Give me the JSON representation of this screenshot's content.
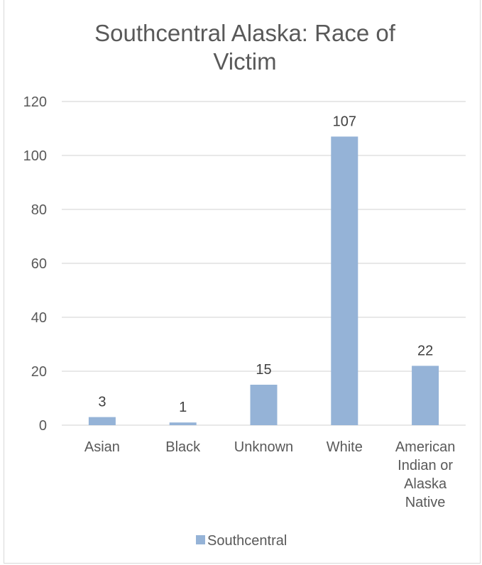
{
  "chart_data": {
    "type": "bar",
    "title": "Southcentral Alaska: Race of Victim",
    "title_lines": [
      "Southcentral Alaska: Race of",
      "Victim"
    ],
    "categories": [
      "Asian",
      "Black",
      "Unknown",
      "White",
      "American Indian or Alaska Native"
    ],
    "category_lines": [
      [
        "Asian"
      ],
      [
        "Black"
      ],
      [
        "Unknown"
      ],
      [
        "White"
      ],
      [
        "American",
        "Indian or",
        "Alaska",
        "Native"
      ]
    ],
    "series": [
      {
        "name": "Southcentral",
        "values": [
          3,
          1,
          15,
          107,
          22
        ],
        "color": "#95b3d7"
      }
    ],
    "yticks": [
      0,
      20,
      40,
      60,
      80,
      100,
      120
    ],
    "ylim": [
      0,
      120
    ],
    "xlabel": "",
    "ylabel": "",
    "grid": true,
    "data_labels": true,
    "legend_position": "bottom"
  },
  "colors": {
    "bar": "#95b3d7",
    "gridline": "#d9d9d9",
    "text": "#595959"
  }
}
